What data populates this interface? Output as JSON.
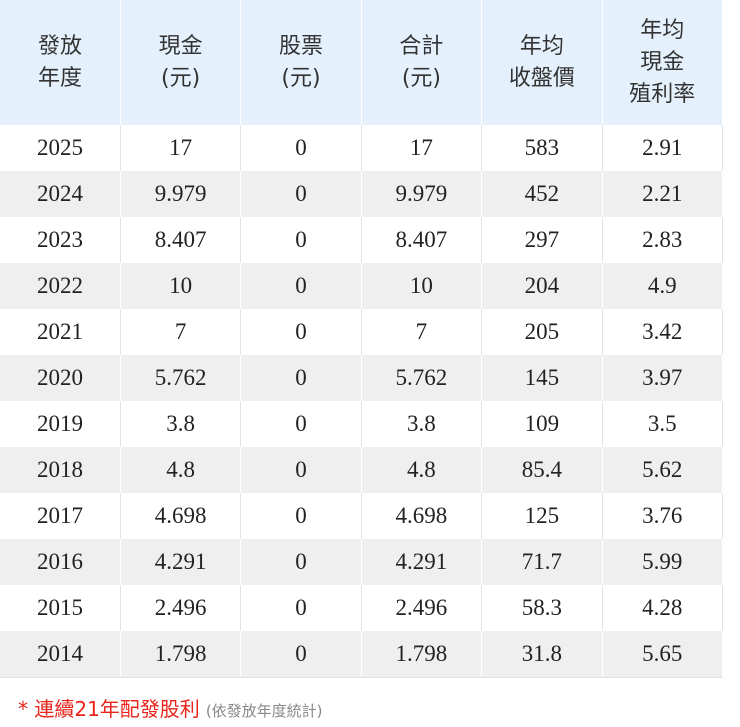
{
  "table": {
    "header": [
      [
        "發放",
        "年度"
      ],
      [
        "現金",
        "(元)"
      ],
      [
        "股票",
        "(元)"
      ],
      [
        "合計",
        "(元)"
      ],
      [
        "年均",
        "收盤價"
      ],
      [
        "年均",
        "現金",
        "殖利率"
      ]
    ],
    "rows": [
      [
        "2025",
        "17",
        "0",
        "17",
        "583",
        "2.91"
      ],
      [
        "2024",
        "9.979",
        "0",
        "9.979",
        "452",
        "2.21"
      ],
      [
        "2023",
        "8.407",
        "0",
        "8.407",
        "297",
        "2.83"
      ],
      [
        "2022",
        "10",
        "0",
        "10",
        "204",
        "4.9"
      ],
      [
        "2021",
        "7",
        "0",
        "7",
        "205",
        "3.42"
      ],
      [
        "2020",
        "5.762",
        "0",
        "5.762",
        "145",
        "3.97"
      ],
      [
        "2019",
        "3.8",
        "0",
        "3.8",
        "109",
        "3.5"
      ],
      [
        "2018",
        "4.8",
        "0",
        "4.8",
        "85.4",
        "5.62"
      ],
      [
        "2017",
        "4.698",
        "0",
        "4.698",
        "125",
        "3.76"
      ],
      [
        "2016",
        "4.291",
        "0",
        "4.291",
        "71.7",
        "5.99"
      ],
      [
        "2015",
        "2.496",
        "0",
        "2.496",
        "58.3",
        "4.28"
      ],
      [
        "2014",
        "1.798",
        "0",
        "1.798",
        "31.8",
        "5.65"
      ]
    ]
  },
  "footer": {
    "note": "* 連續21年配發股利",
    "subnote": "(依發放年度統計)"
  }
}
